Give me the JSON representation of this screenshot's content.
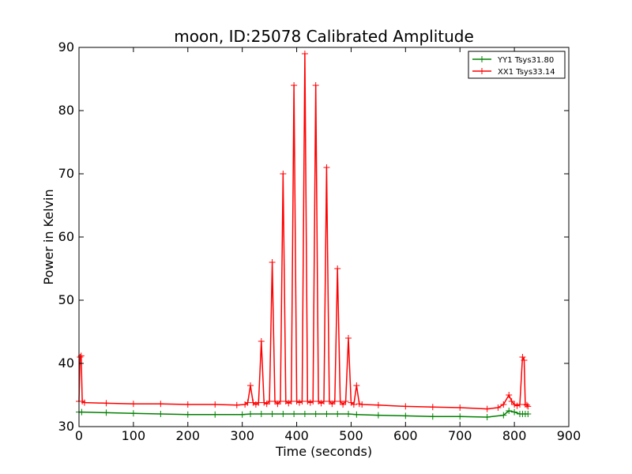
{
  "chart_data": {
    "type": "line",
    "title": "moon, ID:25078 Calibrated Amplitude",
    "xlabel": "Time (seconds)",
    "ylabel": "Power in Kelvin",
    "xlim": [
      0,
      900
    ],
    "ylim": [
      30,
      90
    ],
    "xticks": [
      "0",
      "100",
      "200",
      "300",
      "400",
      "500",
      "600",
      "700",
      "800",
      "900"
    ],
    "yticks": [
      "30",
      "40",
      "50",
      "60",
      "70",
      "80",
      "90"
    ],
    "grid": false,
    "legend_position": "top-right",
    "series": [
      {
        "name": "YY1 Tsys31.80",
        "color": "#008000",
        "marker": "+",
        "x": [
          0,
          5,
          50,
          100,
          150,
          200,
          250,
          300,
          315,
          335,
          355,
          375,
          395,
          415,
          435,
          455,
          475,
          495,
          510,
          550,
          600,
          650,
          700,
          750,
          780,
          790,
          800,
          810,
          815,
          820,
          825
        ],
        "y": [
          32.3,
          32.3,
          32.2,
          32.1,
          32.0,
          31.9,
          31.9,
          31.9,
          32.0,
          32.0,
          32.0,
          32.0,
          32.0,
          32.0,
          32.0,
          32.0,
          32.0,
          32.0,
          31.9,
          31.8,
          31.7,
          31.6,
          31.6,
          31.5,
          31.8,
          32.5,
          32.3,
          32.0,
          32.0,
          32.0,
          32.0
        ]
      },
      {
        "name": "XX1 Tsys33.14",
        "color": "#ff0000",
        "marker": "+",
        "x": [
          0,
          2,
          4,
          6,
          10,
          50,
          100,
          150,
          200,
          250,
          290,
          305,
          310,
          315,
          320,
          325,
          330,
          335,
          340,
          345,
          350,
          355,
          360,
          365,
          370,
          375,
          380,
          385,
          390,
          395,
          400,
          405,
          410,
          415,
          420,
          425,
          430,
          435,
          440,
          445,
          450,
          455,
          460,
          465,
          470,
          475,
          480,
          485,
          490,
          495,
          500,
          505,
          510,
          515,
          520,
          550,
          600,
          650,
          700,
          750,
          770,
          780,
          790,
          795,
          800,
          805,
          810,
          815,
          818,
          820,
          823,
          825
        ],
        "y": [
          34.0,
          41.0,
          41.2,
          34.0,
          33.8,
          33.7,
          33.6,
          33.6,
          33.5,
          33.5,
          33.4,
          33.5,
          33.8,
          36.5,
          33.8,
          33.5,
          33.8,
          43.5,
          33.8,
          33.6,
          34.0,
          56.0,
          34.0,
          33.6,
          34.0,
          70.0,
          34.0,
          33.7,
          34.0,
          84.0,
          34.0,
          33.8,
          34.0,
          89.0,
          34.0,
          33.8,
          34.0,
          84.0,
          34.0,
          33.7,
          34.0,
          71.0,
          34.0,
          33.6,
          34.0,
          55.0,
          34.0,
          33.5,
          34.0,
          44.0,
          33.8,
          33.5,
          36.5,
          33.6,
          33.5,
          33.4,
          33.2,
          33.1,
          33.0,
          32.8,
          33.0,
          33.5,
          35.0,
          34.0,
          33.5,
          33.3,
          33.5,
          41.0,
          40.5,
          33.5,
          33.4,
          33.2
        ]
      }
    ]
  }
}
